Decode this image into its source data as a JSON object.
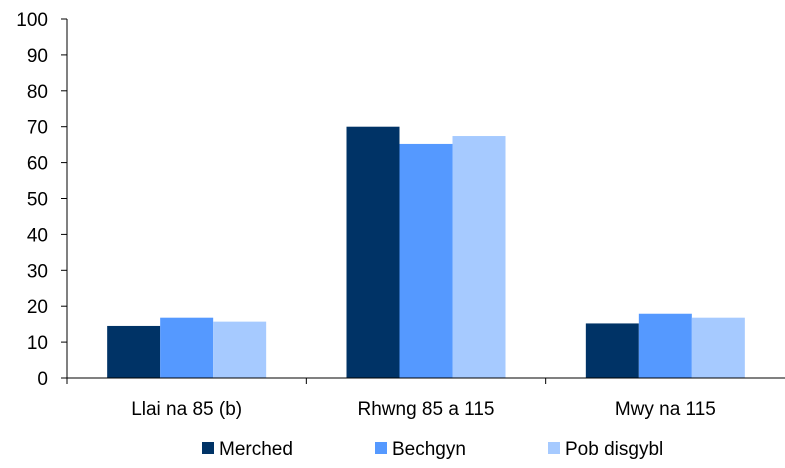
{
  "chart_data": {
    "type": "bar",
    "categories": [
      "Llai na 85 (b)",
      "Rhwng 85 a 115",
      "Mwy na 115"
    ],
    "series": [
      {
        "name": "Merched",
        "values": [
          14.5,
          70.0,
          15.2
        ],
        "color": "#003366"
      },
      {
        "name": "Bechgyn",
        "values": [
          16.8,
          65.2,
          17.9
        ],
        "color": "#5599FF"
      },
      {
        "name": "Pob disgybl",
        "values": [
          15.7,
          67.4,
          16.8
        ],
        "color": "#A6CAFF"
      }
    ],
    "ylim": [
      0,
      100
    ],
    "yticks": [
      "0",
      "10",
      "20",
      "30",
      "40",
      "50",
      "60",
      "70",
      "80",
      "90",
      "100"
    ],
    "grid": false,
    "legend_position": "bottom",
    "axis_color": "#000000"
  }
}
